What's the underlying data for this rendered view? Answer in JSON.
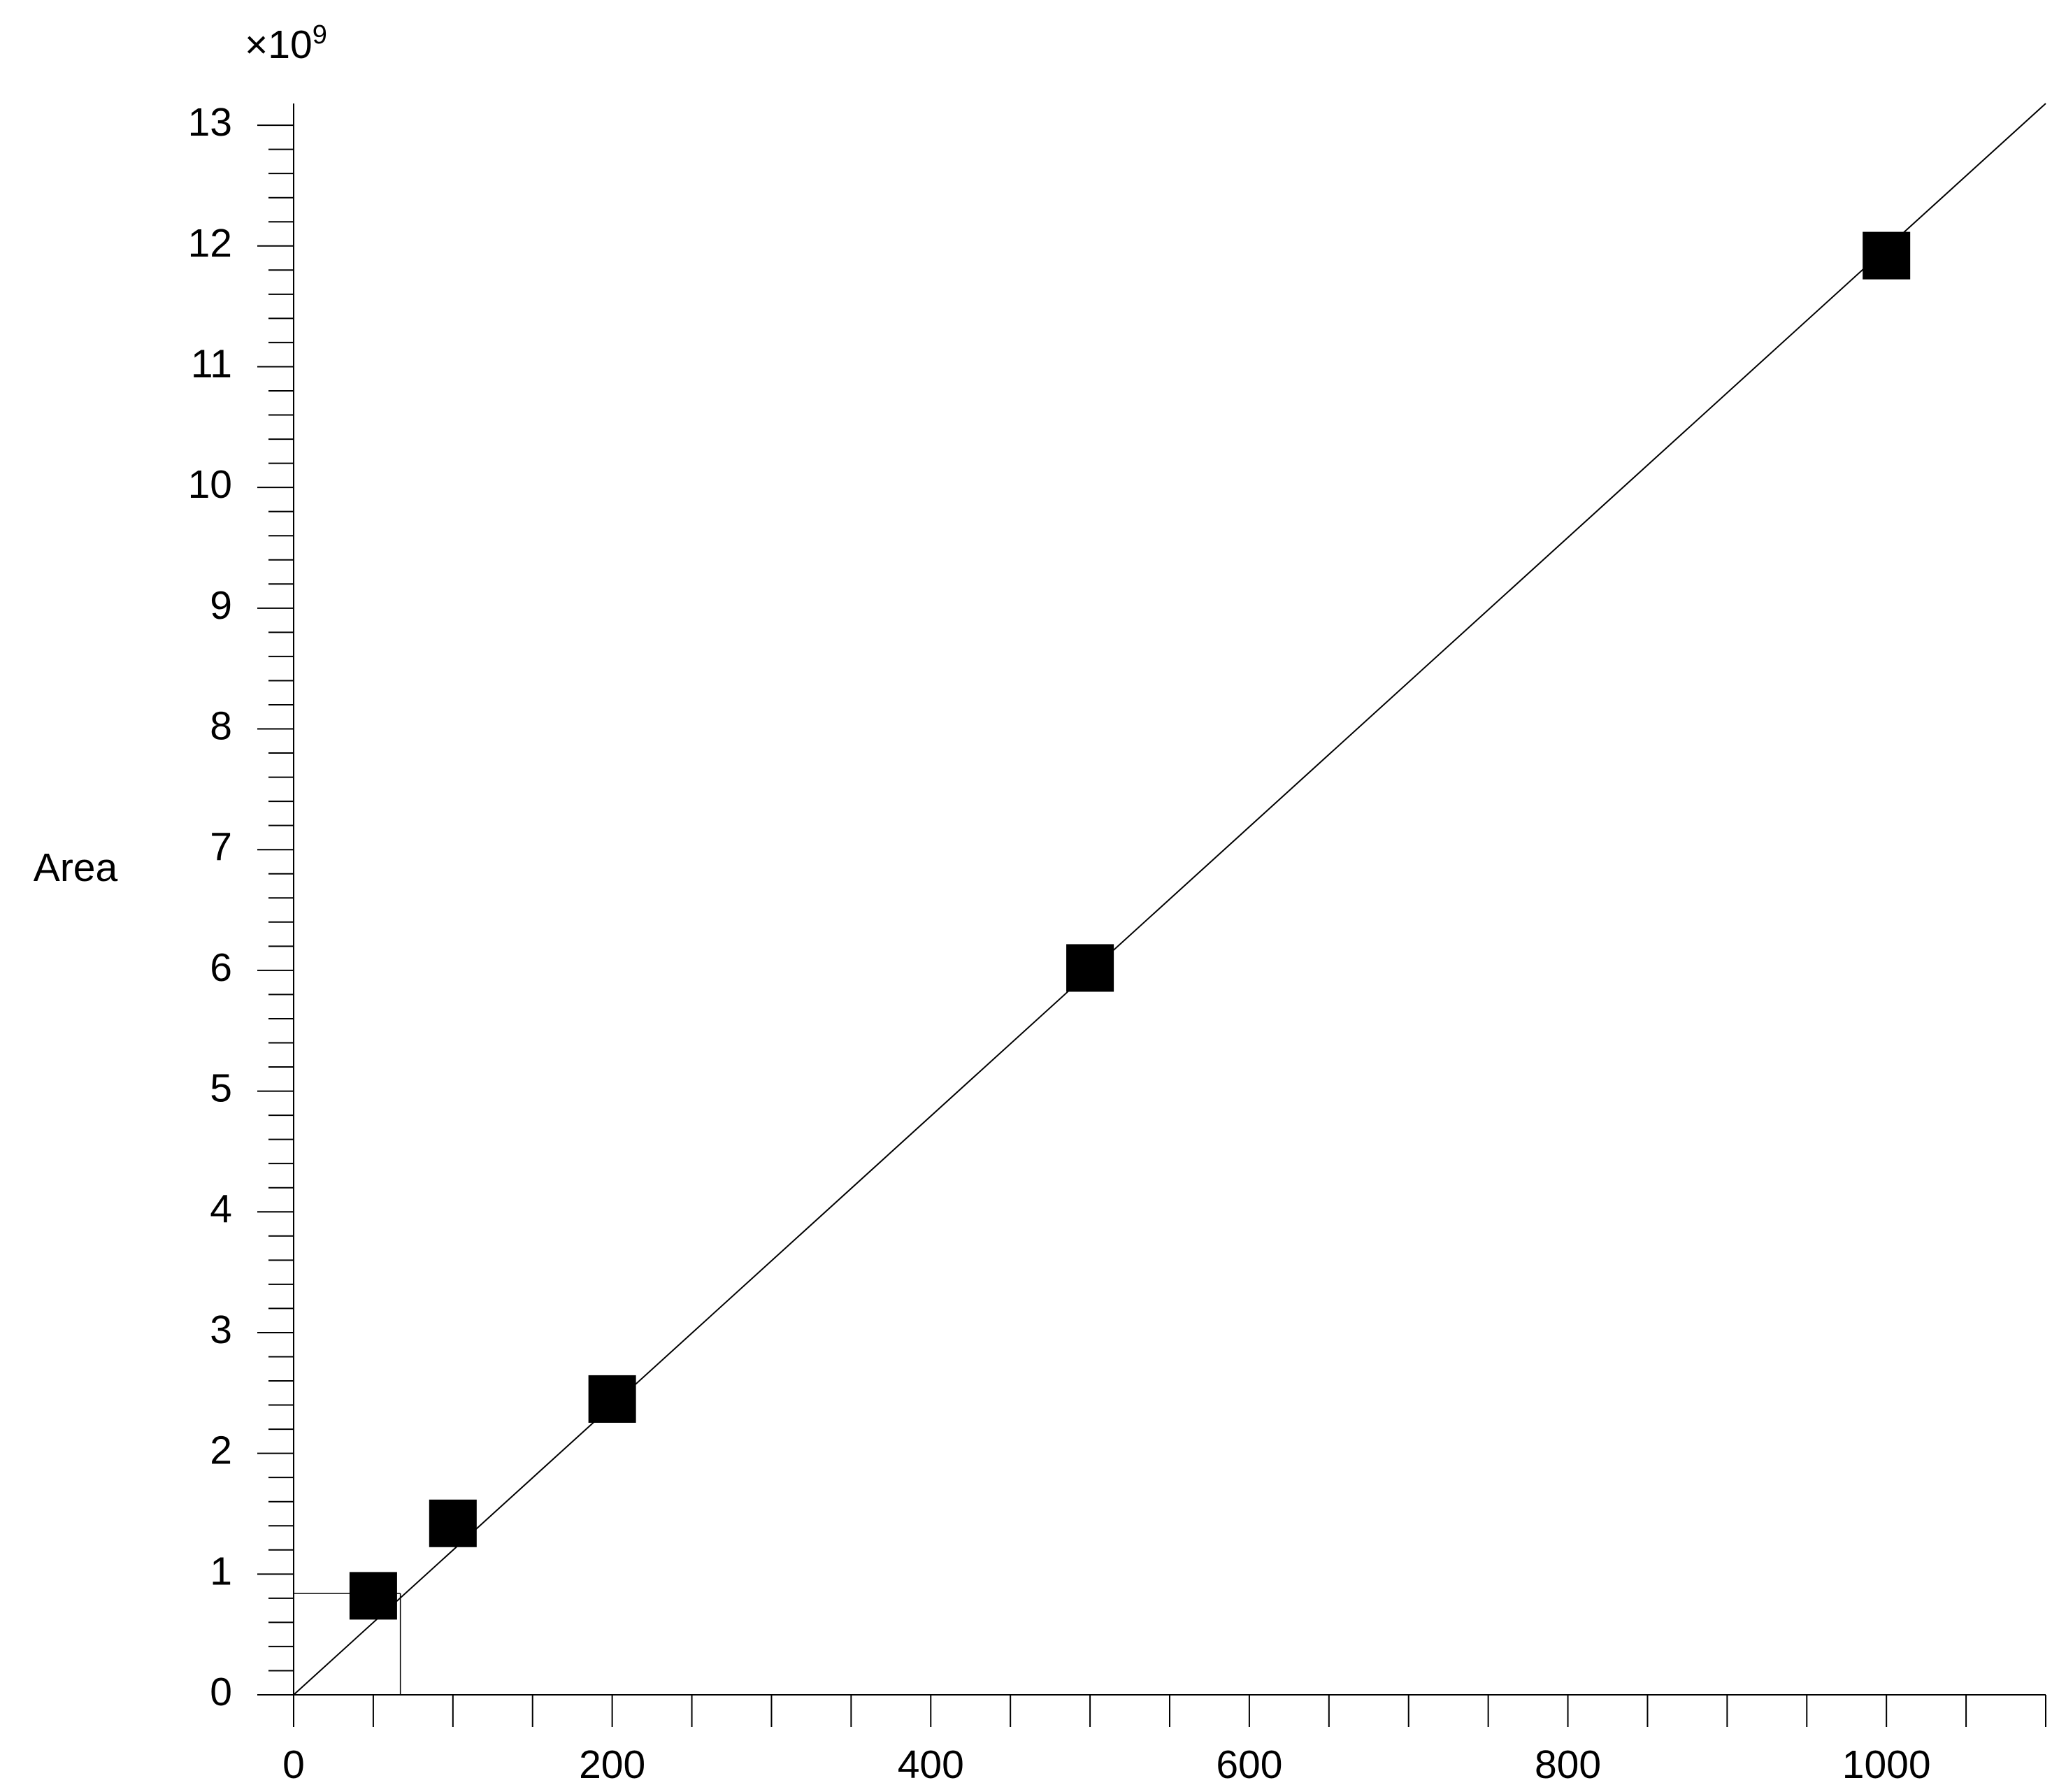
{
  "chart_data": {
    "type": "scatter",
    "y_label": "Area",
    "y_multiplier": "×10",
    "y_exponent": "9",
    "series": [
      {
        "color": "#000000",
        "x": [
          50,
          100,
          200,
          500,
          1000
        ],
        "values": [
          0.82,
          1.42,
          2.45,
          6.02,
          11.92
        ]
      }
    ],
    "fit_line": {
      "x": [
        0,
        1100
      ],
      "y": [
        0,
        13.18
      ]
    },
    "crosshair": {
      "x": 67,
      "y": 0.84
    },
    "xlim": [
      0,
      1100
    ],
    "ylim": [
      0,
      13.18
    ],
    "xticks": [
      0,
      200,
      400,
      600,
      800,
      1000
    ],
    "yticks": [
      0,
      1,
      2,
      3,
      4,
      5,
      6,
      7,
      8,
      9,
      10,
      11,
      12,
      13
    ],
    "xminorticks": [
      50,
      100,
      150,
      250,
      300,
      350,
      450,
      500,
      550,
      650,
      700,
      750,
      850,
      900,
      950,
      1050,
      1100
    ],
    "yminorticks": [
      0.2,
      0.4,
      0.6,
      0.8,
      1.2,
      1.4,
      1.6,
      1.8,
      2.2,
      2.4,
      2.6,
      2.8,
      3.2,
      3.4,
      3.6,
      3.8,
      4.2,
      4.4,
      4.6,
      4.8,
      5.2,
      5.4,
      5.6,
      5.8,
      6.2,
      6.4,
      6.6,
      6.8,
      7.2,
      7.4,
      7.6,
      7.8,
      8.2,
      8.4,
      8.6,
      8.8,
      9.2,
      9.4,
      9.6,
      9.8,
      10.2,
      10.4,
      10.6,
      10.8,
      11.2,
      11.4,
      11.6,
      11.8,
      12.2,
      12.4,
      12.6,
      12.8
    ]
  }
}
